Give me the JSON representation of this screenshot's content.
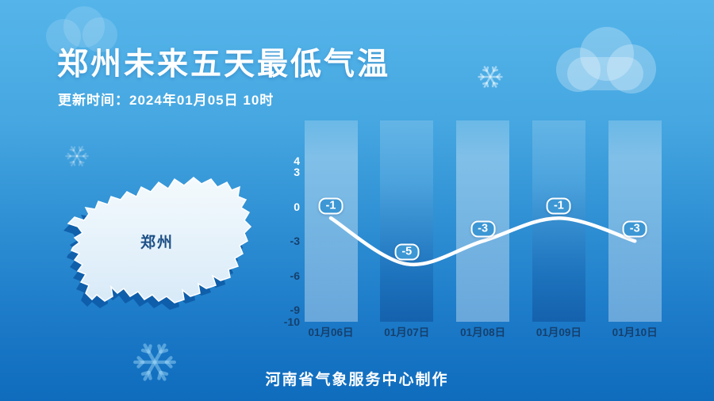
{
  "header": {
    "title": "郑州未来五天最低气温",
    "update_time": "更新时间：2024年01月05日 10时"
  },
  "map": {
    "label": "郑州"
  },
  "chart_data": {
    "type": "line",
    "title": "郑州未来五天最低气温",
    "categories": [
      "01月06日",
      "01月07日",
      "01月08日",
      "01月09日",
      "01月10日"
    ],
    "values": [
      -1,
      -5,
      -3,
      -1,
      -3
    ],
    "value_labels": [
      "-1",
      "-5",
      "-3",
      "-1",
      "-3"
    ],
    "yticks": [
      4,
      3,
      0,
      -3,
      -6,
      -9,
      -10
    ],
    "ylim": [
      -10,
      4
    ],
    "xlabel": "",
    "ylabel": "",
    "grid": false,
    "legend": false,
    "line_color": "#ffffff",
    "badge_fill": "#3c97d4",
    "tick_color_positive": "#ffffff",
    "tick_color_negative": "#16406d",
    "date_label_color": "#16406d",
    "bar_pattern": [
      "light",
      "dark",
      "light",
      "dark",
      "light"
    ]
  },
  "footer": {
    "credit": "河南省气象服务中心制作"
  },
  "colors": {
    "background_top": "#55b5ea",
    "background_bottom": "#0f6cbd",
    "map_fill": "#edf5fc",
    "map_shadow": "#0d5aa6",
    "map_label": "#1c4f86"
  }
}
